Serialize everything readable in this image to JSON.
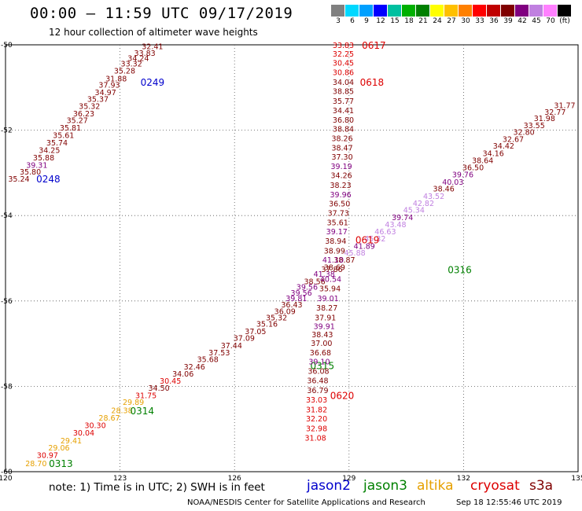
{
  "header": {
    "title": "00:00 – 11:59 UTC 09/17/2019",
    "subtitle": "12 hour collection of altimeter wave heights"
  },
  "colorbar": {
    "labels": [
      "3",
      "6",
      "9",
      "12",
      "15",
      "18",
      "21",
      "24",
      "27",
      "30",
      "33",
      "36",
      "39",
      "42",
      "45",
      "70",
      "(ft)"
    ],
    "colors": [
      "#808080",
      "#00d8ff",
      "#00a0ff",
      "#0000ff",
      "#00c0a0",
      "#00b000",
      "#008000",
      "#ffff00",
      "#ffc000",
      "#ff8000",
      "#ff0000",
      "#c00000",
      "#800000",
      "#800080",
      "#c080e0",
      "#ff80ff",
      "#000000"
    ]
  },
  "footer": {
    "note": "note:  1) Time is in UTC;  2) SWH is in feet",
    "credit": "NOAA/NESDIS Center for Satellite Applications and Research",
    "timestamp": "Sep 18 12:55:46 UTC 2019"
  },
  "legend": [
    {
      "name": "jason2",
      "color": "#0000cc"
    },
    {
      "name": "jason3",
      "color": "#008000"
    },
    {
      "name": "altika",
      "color": "#e6a000"
    },
    {
      "name": "cryosat",
      "color": "#dd0000"
    },
    {
      "name": "s3a",
      "color": "#800000"
    }
  ],
  "chart_data": {
    "type": "scatter",
    "title": "00:00 – 11:59 UTC 09/17/2019",
    "subtitle": "12 hour collection of altimeter wave heights",
    "xlim": [
      120,
      135
    ],
    "ylim": [
      -60,
      -50
    ],
    "x_ticks": [
      "120",
      "123",
      "126",
      "129",
      "132",
      "135"
    ],
    "y_ticks": [
      "-50",
      "-52",
      "-54",
      "-56",
      "-58",
      "-60"
    ],
    "grid": true,
    "tracks": [
      {
        "time_labels": [
          {
            "text": "0248",
            "x": 121.12,
            "y": -53.15,
            "color": "#0000cc"
          },
          {
            "text": "0249",
            "x": 123.85,
            "y": -50.88,
            "color": "#0000cc"
          }
        ],
        "points": [
          {
            "x": 120.35,
            "y": -53.15,
            "v": "35.24",
            "c": "#800000"
          },
          {
            "x": 120.65,
            "y": -52.98,
            "v": "35.80",
            "c": "#800000"
          },
          {
            "x": 120.82,
            "y": -52.83,
            "v": "39.31",
            "c": "#800080"
          },
          {
            "x": 121.0,
            "y": -52.65,
            "v": "35.88",
            "c": "#800000"
          },
          {
            "x": 121.15,
            "y": -52.48,
            "v": "34.25",
            "c": "#800000"
          },
          {
            "x": 121.35,
            "y": -52.3,
            "v": "35.74",
            "c": "#800000"
          },
          {
            "x": 121.52,
            "y": -52.13,
            "v": "35.61",
            "c": "#800000"
          },
          {
            "x": 121.7,
            "y": -51.95,
            "v": "35.81",
            "c": "#800000"
          },
          {
            "x": 121.88,
            "y": -51.78,
            "v": "35.27",
            "c": "#800000"
          },
          {
            "x": 122.05,
            "y": -51.62,
            "v": "36.23",
            "c": "#800000"
          },
          {
            "x": 122.2,
            "y": -51.45,
            "v": "35.32",
            "c": "#800000"
          },
          {
            "x": 122.42,
            "y": -51.28,
            "v": "35.37",
            "c": "#800000"
          },
          {
            "x": 122.62,
            "y": -51.12,
            "v": "34.97",
            "c": "#800000"
          },
          {
            "x": 122.72,
            "y": -50.95,
            "v": "37.93",
            "c": "#800000"
          },
          {
            "x": 122.9,
            "y": -50.8,
            "v": "31.88",
            "c": "#800000"
          },
          {
            "x": 123.12,
            "y": -50.62,
            "v": "35.28",
            "c": "#800000"
          },
          {
            "x": 123.3,
            "y": -50.45,
            "v": "33.32",
            "c": "#800000"
          },
          {
            "x": 123.48,
            "y": -50.32,
            "v": "34.24",
            "c": "#800000"
          },
          {
            "x": 123.65,
            "y": -50.2,
            "v": "33.83",
            "c": "#800000"
          },
          {
            "x": 123.85,
            "y": -50.05,
            "v": "32.41",
            "c": "#800000"
          }
        ]
      },
      {
        "time_labels": [
          {
            "text": "0313",
            "x": 121.45,
            "y": -59.82,
            "color": "#008000"
          },
          {
            "text": "0314",
            "x": 123.58,
            "y": -58.58,
            "color": "#008000"
          },
          {
            "text": "0315",
            "x": 128.3,
            "y": -57.52,
            "color": "#008000"
          },
          {
            "text": "0316",
            "x": 131.9,
            "y": -55.28,
            "color": "#008000"
          }
        ],
        "points": [
          {
            "x": 120.8,
            "y": -59.82,
            "v": "28.70",
            "c": "#e6a000"
          },
          {
            "x": 121.1,
            "y": -59.62,
            "v": "30.97",
            "c": "#dd0000"
          },
          {
            "x": 121.4,
            "y": -59.45,
            "v": "29.06",
            "c": "#e6a000"
          },
          {
            "x": 121.72,
            "y": -59.28,
            "v": "29.41",
            "c": "#e6a000"
          },
          {
            "x": 122.05,
            "y": -59.1,
            "v": "30.04",
            "c": "#dd0000"
          },
          {
            "x": 122.35,
            "y": -58.92,
            "v": "30.30",
            "c": "#dd0000"
          },
          {
            "x": 122.72,
            "y": -58.75,
            "v": "28.67",
            "c": "#e6a000"
          },
          {
            "x": 123.05,
            "y": -58.57,
            "v": "28.38",
            "c": "#e6a000"
          },
          {
            "x": 123.35,
            "y": -58.38,
            "v": "29.89",
            "c": "#e6a000"
          },
          {
            "x": 123.68,
            "y": -58.22,
            "v": "31.75",
            "c": "#dd0000"
          },
          {
            "x": 124.02,
            "y": -58.05,
            "v": "34.50",
            "c": "#800000"
          },
          {
            "x": 124.32,
            "y": -57.88,
            "v": "30.45",
            "c": "#dd0000"
          },
          {
            "x": 124.65,
            "y": -57.72,
            "v": "34.06",
            "c": "#800000"
          },
          {
            "x": 124.95,
            "y": -57.55,
            "v": "32.46",
            "c": "#800000"
          },
          {
            "x": 125.3,
            "y": -57.38,
            "v": "35.68",
            "c": "#800000"
          },
          {
            "x": 125.6,
            "y": -57.22,
            "v": "37.53",
            "c": "#800000"
          },
          {
            "x": 125.92,
            "y": -57.05,
            "v": "37.44",
            "c": "#800000"
          },
          {
            "x": 126.25,
            "y": -56.88,
            "v": "37.09",
            "c": "#800000"
          },
          {
            "x": 126.55,
            "y": -56.72,
            "v": "37.05",
            "c": "#800000"
          },
          {
            "x": 126.85,
            "y": -56.55,
            "v": "35.16",
            "c": "#800000"
          },
          {
            "x": 127.1,
            "y": -56.4,
            "v": "35.32",
            "c": "#800000"
          },
          {
            "x": 127.32,
            "y": -56.25,
            "v": "36.09",
            "c": "#800000"
          },
          {
            "x": 127.5,
            "y": -56.1,
            "v": "36.43",
            "c": "#800000"
          },
          {
            "x": 127.62,
            "y": -55.95,
            "v": "39.81",
            "c": "#800080"
          },
          {
            "x": 127.75,
            "y": -55.82,
            "v": "39.56",
            "c": "#800080"
          },
          {
            "x": 127.9,
            "y": -55.68,
            "v": "39.56",
            "c": "#800080"
          },
          {
            "x": 128.1,
            "y": -55.55,
            "v": "38.56",
            "c": "#800000"
          },
          {
            "x": 128.35,
            "y": -55.38,
            "v": "41.38",
            "c": "#800080"
          },
          {
            "x": 128.62,
            "y": -55.22,
            "v": "38.69",
            "c": "#800000"
          },
          {
            "x": 128.88,
            "y": -55.05,
            "v": "38.87",
            "c": "#800000"
          },
          {
            "x": 129.15,
            "y": -54.88,
            "v": "45.88",
            "c": "#c080e0"
          },
          {
            "x": 129.4,
            "y": -54.72,
            "v": "41.89",
            "c": "#800080"
          },
          {
            "x": 129.68,
            "y": -54.55,
            "v": "45.32",
            "c": "#c080e0"
          },
          {
            "x": 129.95,
            "y": -54.38,
            "v": "46.63",
            "c": "#c080e0"
          },
          {
            "x": 130.22,
            "y": -54.22,
            "v": "43.48",
            "c": "#c080e0"
          },
          {
            "x": 130.4,
            "y": -54.05,
            "v": "39.74",
            "c": "#800080"
          },
          {
            "x": 130.7,
            "y": -53.88,
            "v": "45.34",
            "c": "#c080e0"
          },
          {
            "x": 130.95,
            "y": -53.72,
            "v": "42.82",
            "c": "#c080e0"
          },
          {
            "x": 131.22,
            "y": -53.55,
            "v": "43.52",
            "c": "#c080e0"
          },
          {
            "x": 131.48,
            "y": -53.38,
            "v": "38.46",
            "c": "#800000"
          },
          {
            "x": 131.72,
            "y": -53.22,
            "v": "40.03",
            "c": "#800080"
          },
          {
            "x": 131.98,
            "y": -53.05,
            "v": "39.76",
            "c": "#800080"
          },
          {
            "x": 132.25,
            "y": -52.88,
            "v": "36.50",
            "c": "#800000"
          },
          {
            "x": 132.5,
            "y": -52.72,
            "v": "38.64",
            "c": "#800000"
          },
          {
            "x": 132.78,
            "y": -52.55,
            "v": "34.16",
            "c": "#800000"
          },
          {
            "x": 133.05,
            "y": -52.38,
            "v": "34.42",
            "c": "#800000"
          },
          {
            "x": 133.3,
            "y": -52.22,
            "v": "32.67",
            "c": "#800000"
          },
          {
            "x": 133.58,
            "y": -52.05,
            "v": "32.80",
            "c": "#800000"
          },
          {
            "x": 133.85,
            "y": -51.9,
            "v": "33.55",
            "c": "#800000"
          },
          {
            "x": 134.12,
            "y": -51.73,
            "v": "31.98",
            "c": "#800000"
          },
          {
            "x": 134.4,
            "y": -51.58,
            "v": "32.77",
            "c": "#800000"
          },
          {
            "x": 134.65,
            "y": -51.43,
            "v": "31.77",
            "c": "#800000"
          }
        ]
      },
      {
        "time_labels": [
          {
            "text": "0617",
            "x": 129.65,
            "y": -50.02,
            "color": "#dd0000"
          },
          {
            "text": "0618",
            "x": 129.6,
            "y": -50.88,
            "color": "#dd0000"
          },
          {
            "text": "0619",
            "x": 129.48,
            "y": -54.58,
            "color": "#dd0000"
          },
          {
            "text": "0620",
            "x": 128.82,
            "y": -58.22,
            "color": "#dd0000"
          }
        ],
        "points": [
          {
            "x": 128.85,
            "y": -50.02,
            "v": "33.83",
            "c": "#dd0000"
          },
          {
            "x": 128.85,
            "y": -50.22,
            "v": "32.25",
            "c": "#dd0000"
          },
          {
            "x": 128.85,
            "y": -50.43,
            "v": "30.45",
            "c": "#dd0000"
          },
          {
            "x": 128.85,
            "y": -50.65,
            "v": "30.86",
            "c": "#dd0000"
          },
          {
            "x": 128.85,
            "y": -50.88,
            "v": "34.04",
            "c": "#800000"
          },
          {
            "x": 128.85,
            "y": -51.1,
            "v": "38.85",
            "c": "#800000"
          },
          {
            "x": 128.85,
            "y": -51.33,
            "v": "35.77",
            "c": "#800000"
          },
          {
            "x": 128.85,
            "y": -51.55,
            "v": "34.41",
            "c": "#800000"
          },
          {
            "x": 128.85,
            "y": -51.77,
            "v": "36.80",
            "c": "#800000"
          },
          {
            "x": 128.85,
            "y": -51.98,
            "v": "38.84",
            "c": "#800000"
          },
          {
            "x": 128.82,
            "y": -52.2,
            "v": "38.26",
            "c": "#800000"
          },
          {
            "x": 128.82,
            "y": -52.42,
            "v": "38.47",
            "c": "#800000"
          },
          {
            "x": 128.82,
            "y": -52.63,
            "v": "37.30",
            "c": "#800000"
          },
          {
            "x": 128.8,
            "y": -52.85,
            "v": "39.19",
            "c": "#800080"
          },
          {
            "x": 128.8,
            "y": -53.07,
            "v": "34.26",
            "c": "#800000"
          },
          {
            "x": 128.78,
            "y": -53.3,
            "v": "38.23",
            "c": "#800000"
          },
          {
            "x": 128.78,
            "y": -53.52,
            "v": "39.96",
            "c": "#800080"
          },
          {
            "x": 128.75,
            "y": -53.73,
            "v": "36.50",
            "c": "#800000"
          },
          {
            "x": 128.72,
            "y": -53.95,
            "v": "37.73",
            "c": "#800000"
          },
          {
            "x": 128.7,
            "y": -54.17,
            "v": "35.61",
            "c": "#800000"
          },
          {
            "x": 128.68,
            "y": -54.38,
            "v": "39.17",
            "c": "#800080"
          },
          {
            "x": 128.65,
            "y": -54.6,
            "v": "38.94",
            "c": "#800000"
          },
          {
            "x": 128.62,
            "y": -54.83,
            "v": "38.99",
            "c": "#800000"
          },
          {
            "x": 128.58,
            "y": -55.05,
            "v": "41.10",
            "c": "#800080"
          },
          {
            "x": 128.55,
            "y": -55.27,
            "v": "37.86",
            "c": "#800000"
          },
          {
            "x": 128.52,
            "y": -55.5,
            "v": "40.54",
            "c": "#800080"
          },
          {
            "x": 128.5,
            "y": -55.72,
            "v": "35.94",
            "c": "#800000"
          },
          {
            "x": 128.45,
            "y": -55.95,
            "v": "39.01",
            "c": "#800080"
          },
          {
            "x": 128.42,
            "y": -56.17,
            "v": "38.27",
            "c": "#800000"
          },
          {
            "x": 128.38,
            "y": -56.4,
            "v": "37.91",
            "c": "#800000"
          },
          {
            "x": 128.35,
            "y": -56.6,
            "v": "39.91",
            "c": "#800080"
          },
          {
            "x": 128.3,
            "y": -56.8,
            "v": "38.43",
            "c": "#800000"
          },
          {
            "x": 128.28,
            "y": -57.0,
            "v": "37.00",
            "c": "#800000"
          },
          {
            "x": 128.25,
            "y": -57.22,
            "v": "36.68",
            "c": "#800000"
          },
          {
            "x": 128.22,
            "y": -57.43,
            "v": "39.10",
            "c": "#800080"
          },
          {
            "x": 128.2,
            "y": -57.65,
            "v": "36.08",
            "c": "#800000"
          },
          {
            "x": 128.18,
            "y": -57.87,
            "v": "36.48",
            "c": "#800000"
          },
          {
            "x": 128.18,
            "y": -58.1,
            "v": "36.79",
            "c": "#800000"
          },
          {
            "x": 128.15,
            "y": -58.32,
            "v": "33.03",
            "c": "#dd0000"
          },
          {
            "x": 128.15,
            "y": -58.55,
            "v": "31.82",
            "c": "#dd0000"
          },
          {
            "x": 128.15,
            "y": -58.77,
            "v": "32.20",
            "c": "#dd0000"
          },
          {
            "x": 128.15,
            "y": -59.0,
            "v": "32.98",
            "c": "#dd0000"
          },
          {
            "x": 128.12,
            "y": -59.22,
            "v": "31.08",
            "c": "#dd0000"
          }
        ]
      }
    ]
  }
}
